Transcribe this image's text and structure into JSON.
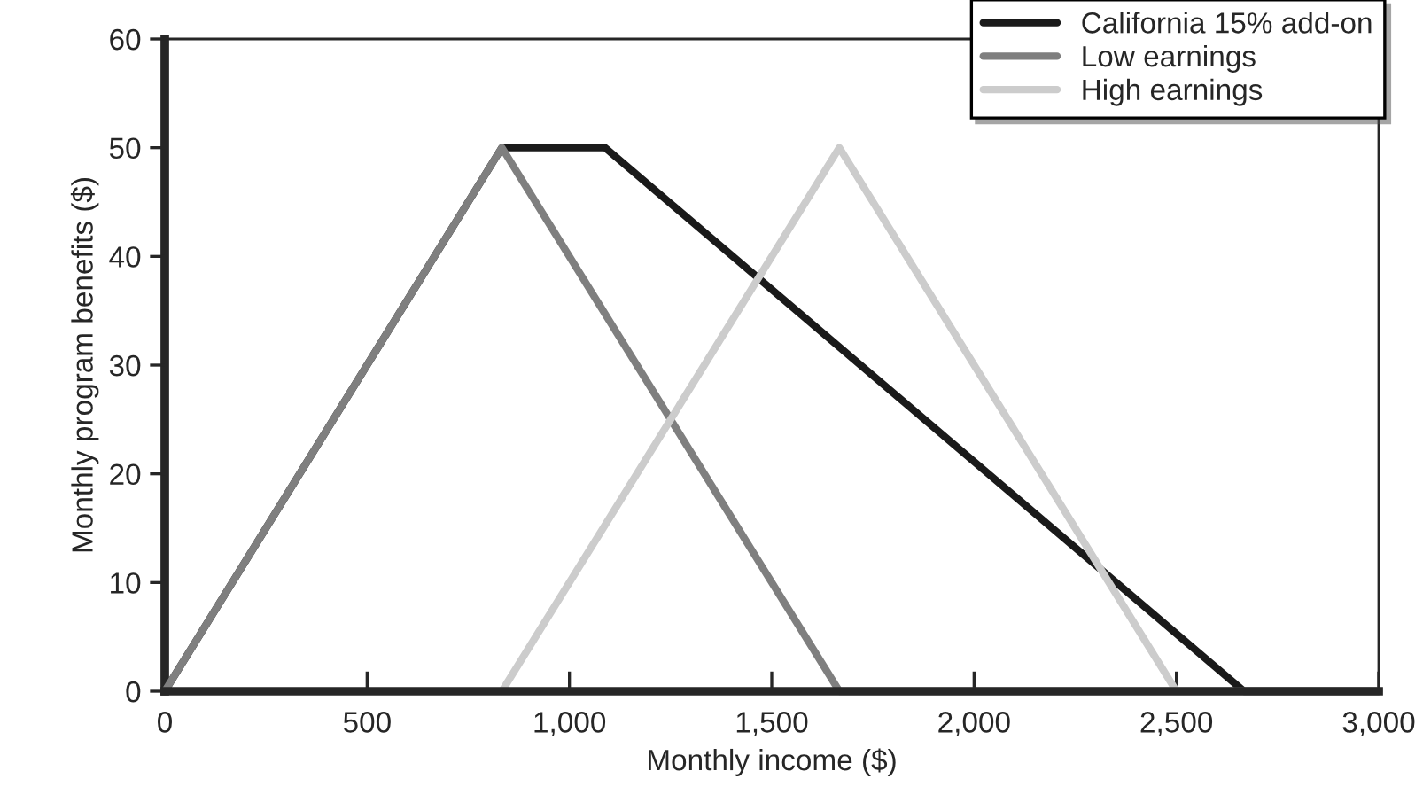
{
  "chart_data": {
    "type": "line",
    "xlabel": "Monthly income ($)",
    "ylabel": "Monthly program benefits ($)",
    "series": [
      {
        "name": "California 15% add-on",
        "color": "#1a1a1a",
        "x": [
          0,
          833,
          1088,
          2667,
          3000
        ],
        "values": [
          0,
          50,
          50,
          0,
          0
        ]
      },
      {
        "name": "Low earnings",
        "color": "#7f7f7f",
        "x": [
          0,
          833,
          1667,
          3000
        ],
        "values": [
          0,
          50,
          0,
          0
        ]
      },
      {
        "name": "High earnings",
        "color": "#cccccc",
        "x": [
          833,
          1667,
          2500,
          3000
        ],
        "values": [
          0,
          50,
          0,
          0
        ]
      }
    ],
    "xlim": [
      0,
      3000
    ],
    "xticks": [
      0,
      {
        "value": 500,
        "label": "500"
      },
      {
        "value": 1000,
        "label": "1,000"
      },
      {
        "value": 1500,
        "label": "1,500"
      },
      {
        "value": 2000,
        "label": "2,000"
      },
      {
        "value": 2500,
        "label": "2,500"
      },
      {
        "value": 3000,
        "label": "3,000"
      }
    ],
    "ylim": [
      0,
      60
    ],
    "yticks": [
      0,
      10,
      20,
      30,
      40,
      50,
      60
    ],
    "grid": false,
    "legend": "top right",
    "marker": "none",
    "line_style": "solid"
  }
}
